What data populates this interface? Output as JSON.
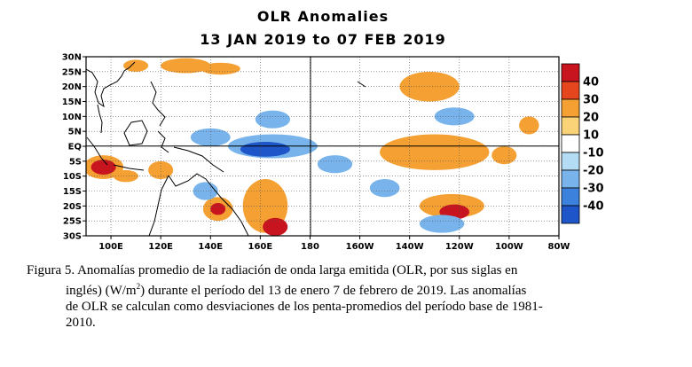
{
  "chart_data": {
    "type": "heatmap",
    "title": "OLR Anomalies",
    "subtitle": "13 JAN 2019 to 07 FEB 2019",
    "xlabel": "",
    "ylabel": "",
    "x_ticks": [
      "100E",
      "120E",
      "140E",
      "160E",
      "180",
      "160W",
      "140W",
      "120W",
      "100W",
      "80W"
    ],
    "y_ticks": [
      "30N",
      "25N",
      "20N",
      "15N",
      "10N",
      "5N",
      "EQ",
      "5S",
      "10S",
      "15S",
      "20S",
      "25S",
      "30S"
    ],
    "lon_range": [
      90,
      280
    ],
    "lat_range": [
      -30,
      30
    ],
    "colorbar": {
      "labels": [
        "40",
        "30",
        "20",
        "10",
        "-10",
        "-20",
        "-30",
        "-40"
      ],
      "colors": [
        "#c8141e",
        "#e6461e",
        "#f5a032",
        "#fad278",
        "#ffffff",
        "#b4dcf5",
        "#78b4eb",
        "#3c82dc",
        "#1e55c8"
      ]
    },
    "regions": [
      {
        "lon": 97,
        "lat": -7,
        "rx": 8,
        "ry": 4,
        "value": 20
      },
      {
        "lon": 97,
        "lat": -7,
        "rx": 5,
        "ry": 2.5,
        "value": 40
      },
      {
        "lon": 106,
        "lat": -10,
        "rx": 5,
        "ry": 2,
        "value": 20
      },
      {
        "lon": 120,
        "lat": -8,
        "rx": 5,
        "ry": 3,
        "value": 20
      },
      {
        "lon": 110,
        "lat": 27,
        "rx": 5,
        "ry": 2,
        "value": 20
      },
      {
        "lon": 130,
        "lat": 27,
        "rx": 10,
        "ry": 2.5,
        "value": 20
      },
      {
        "lon": 144,
        "lat": 26,
        "rx": 8,
        "ry": 2,
        "value": 20
      },
      {
        "lon": 143,
        "lat": -21,
        "rx": 6,
        "ry": 4,
        "value": 20
      },
      {
        "lon": 143,
        "lat": -21,
        "rx": 3,
        "ry": 2,
        "value": 40
      },
      {
        "lon": 162,
        "lat": -20,
        "rx": 9,
        "ry": 9,
        "value": 20
      },
      {
        "lon": 166,
        "lat": -27,
        "rx": 5,
        "ry": 3,
        "value": 40
      },
      {
        "lon": 165,
        "lat": 0,
        "rx": 18,
        "ry": 4,
        "value": -20
      },
      {
        "lon": 162,
        "lat": -1,
        "rx": 10,
        "ry": 2.5,
        "value": -40
      },
      {
        "lon": 165,
        "lat": 9,
        "rx": 7,
        "ry": 3,
        "value": -20
      },
      {
        "lon": 140,
        "lat": 3,
        "rx": 8,
        "ry": 3,
        "value": -20
      },
      {
        "lon": 138,
        "lat": -15,
        "rx": 5,
        "ry": 3,
        "value": -20
      },
      {
        "lon": 190,
        "lat": -6,
        "rx": 7,
        "ry": 3,
        "value": -20
      },
      {
        "lon": 210,
        "lat": -14,
        "rx": 6,
        "ry": 3,
        "value": -20
      },
      {
        "lon": 230,
        "lat": -2,
        "rx": 22,
        "ry": 6,
        "value": 20
      },
      {
        "lon": 237,
        "lat": -20,
        "rx": 13,
        "ry": 4,
        "value": 20
      },
      {
        "lon": 238,
        "lat": -22,
        "rx": 6,
        "ry": 2.5,
        "value": 40
      },
      {
        "lon": 233,
        "lat": -26,
        "rx": 9,
        "ry": 3,
        "value": -20
      },
      {
        "lon": 228,
        "lat": 20,
        "rx": 12,
        "ry": 5,
        "value": 20
      },
      {
        "lon": 238,
        "lat": 10,
        "rx": 8,
        "ry": 3,
        "value": -20
      },
      {
        "lon": 258,
        "lat": -3,
        "rx": 5,
        "ry": 3,
        "value": 20
      },
      {
        "lon": 268,
        "lat": 7,
        "rx": 4,
        "ry": 3,
        "value": 20
      }
    ]
  },
  "caption": {
    "line1": "Figura 5. Anomalías promedio de la radiación de onda larga emitida (OLR, por sus siglas en",
    "line2_a": "inglés) (W/m",
    "line2_sup": "2",
    "line2_b": ") durante el período del 13 de enero 7 de febrero de 2019.  Las anomalías",
    "line3": "de OLR se calculan como desviaciones de los penta-promedios del período base de 1981-",
    "line4": "2010."
  }
}
